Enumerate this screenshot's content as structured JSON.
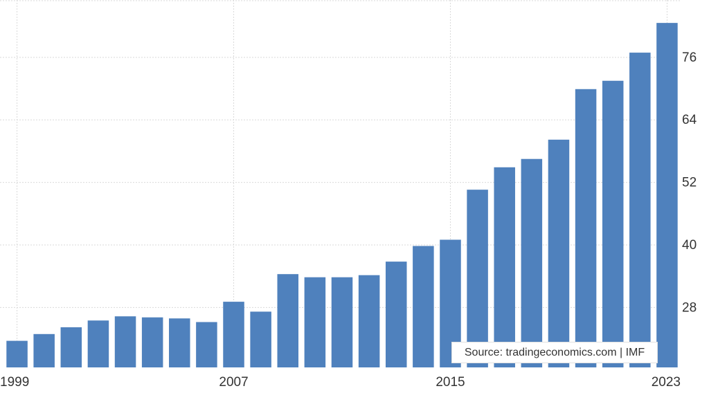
{
  "chart_data": {
    "type": "bar",
    "categories": [
      "1999",
      "2000",
      "2001",
      "2002",
      "2003",
      "2004",
      "2005",
      "2006",
      "2007",
      "2008",
      "2009",
      "2010",
      "2011",
      "2012",
      "2013",
      "2014",
      "2015",
      "2016",
      "2017",
      "2018",
      "2019",
      "2020",
      "2021",
      "2022",
      "2023"
    ],
    "values": [
      21.6,
      22.9,
      24.2,
      25.5,
      26.3,
      26.1,
      25.9,
      25.2,
      29.1,
      27.2,
      34.4,
      33.8,
      33.8,
      34.2,
      36.8,
      39.8,
      41.0,
      50.6,
      54.9,
      56.5,
      60.2,
      69.9,
      71.5,
      76.9,
      82.6
    ],
    "x_tick_labels": [
      "1999",
      "2007",
      "2015",
      "2023"
    ],
    "y_ticks": [
      28,
      40,
      52,
      64,
      76
    ],
    "y_tick_labels": [
      "28",
      "40",
      "52",
      "64",
      "76"
    ],
    "ylim": [
      16.5,
      87
    ],
    "y_axis_side": "right",
    "grid": true,
    "bar_color": "#4f81bd",
    "grid_color": "#d9d9d9",
    "source_label": "Source: tradingeconomics.com | IMF"
  }
}
